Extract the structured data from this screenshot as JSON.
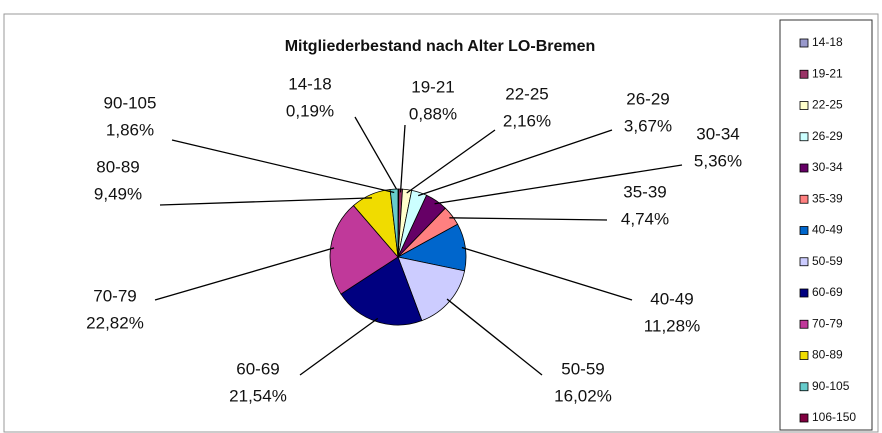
{
  "chart_data": {
    "type": "pie",
    "title": "Mitgliederbestand nach Alter LO-Bremen",
    "categories": [
      "14-18",
      "19-21",
      "22-25",
      "26-29",
      "30-34",
      "35-39",
      "40-49",
      "50-59",
      "60-69",
      "70-79",
      "80-89",
      "90-105",
      "106-150"
    ],
    "values": [
      0.19,
      0.88,
      2.16,
      3.67,
      5.36,
      4.74,
      11.28,
      16.02,
      21.54,
      22.82,
      9.49,
      1.86,
      0
    ],
    "value_labels": [
      "0,19%",
      "0,88%",
      "2,16%",
      "3,67%",
      "5,36%",
      "4,74%",
      "11,28%",
      "16,02%",
      "21,54%",
      "22,82%",
      "9,49%",
      "1,86%",
      null
    ],
    "colors": [
      "#9999cc",
      "#993366",
      "#ffffcc",
      "#ccffff",
      "#660066",
      "#ff8080",
      "#0066cc",
      "#ccccff",
      "#000080",
      "#c0399a",
      "#f0dc00",
      "#66cccc",
      "#800040"
    ],
    "legend": "right"
  }
}
